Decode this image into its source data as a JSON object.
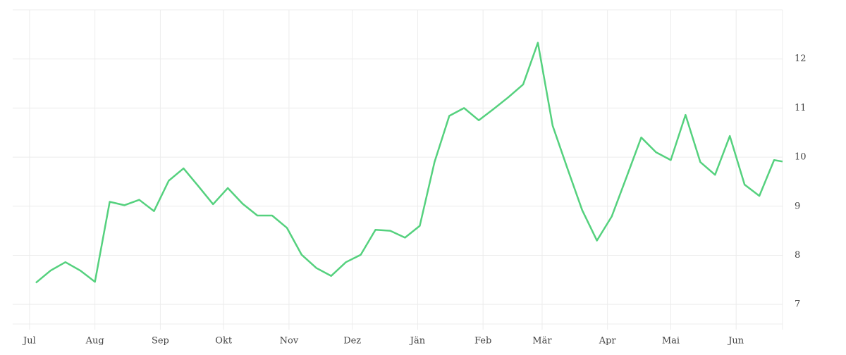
{
  "chart_data": {
    "type": "line",
    "color": "#55d17e",
    "grid": true,
    "x": [
      3,
      10,
      17,
      24,
      31,
      38,
      45,
      52,
      59,
      66,
      73,
      80,
      87,
      94,
      101,
      108,
      115,
      122,
      129,
      136,
      143,
      150,
      157,
      164,
      171,
      178,
      185,
      192,
      199,
      206,
      213,
      220,
      227,
      234,
      241,
      248,
      255,
      262,
      269,
      276,
      283,
      290,
      297,
      304,
      311,
      318,
      325,
      332,
      339,
      346,
      353,
      357
    ],
    "values": [
      7.44,
      7.69,
      7.86,
      7.69,
      7.46,
      9.09,
      9.02,
      9.13,
      8.9,
      9.52,
      9.77,
      9.41,
      9.04,
      9.37,
      9.05,
      8.81,
      8.81,
      8.56,
      8.01,
      7.74,
      7.58,
      7.86,
      8.01,
      8.52,
      8.5,
      8.36,
      8.6,
      9.9,
      10.84,
      11.0,
      10.75,
      10.98,
      11.22,
      11.48,
      12.33,
      10.64,
      9.77,
      8.92,
      8.3,
      8.79,
      9.59,
      10.4,
      10.1,
      9.94,
      10.86,
      9.9,
      9.64,
      10.43,
      9.44,
      9.21,
      9.94,
      9.91
    ],
    "xlim": [
      -8,
      357
    ],
    "xticks": [
      {
        "value": 0,
        "label": "Jul"
      },
      {
        "value": 31,
        "label": "Aug"
      },
      {
        "value": 62,
        "label": "Sep"
      },
      {
        "value": 92,
        "label": "Okt"
      },
      {
        "value": 123,
        "label": "Nov"
      },
      {
        "value": 153,
        "label": "Dez"
      },
      {
        "value": 184,
        "label": "Jän"
      },
      {
        "value": 215,
        "label": "Feb"
      },
      {
        "value": 243,
        "label": "Mär"
      },
      {
        "value": 274,
        "label": "Apr"
      },
      {
        "value": 304,
        "label": "Mai"
      },
      {
        "value": 335,
        "label": "Jun"
      }
    ],
    "ylim": [
      6.6,
      13.0
    ],
    "yticks": [
      7,
      8,
      9,
      10,
      11,
      12
    ]
  }
}
